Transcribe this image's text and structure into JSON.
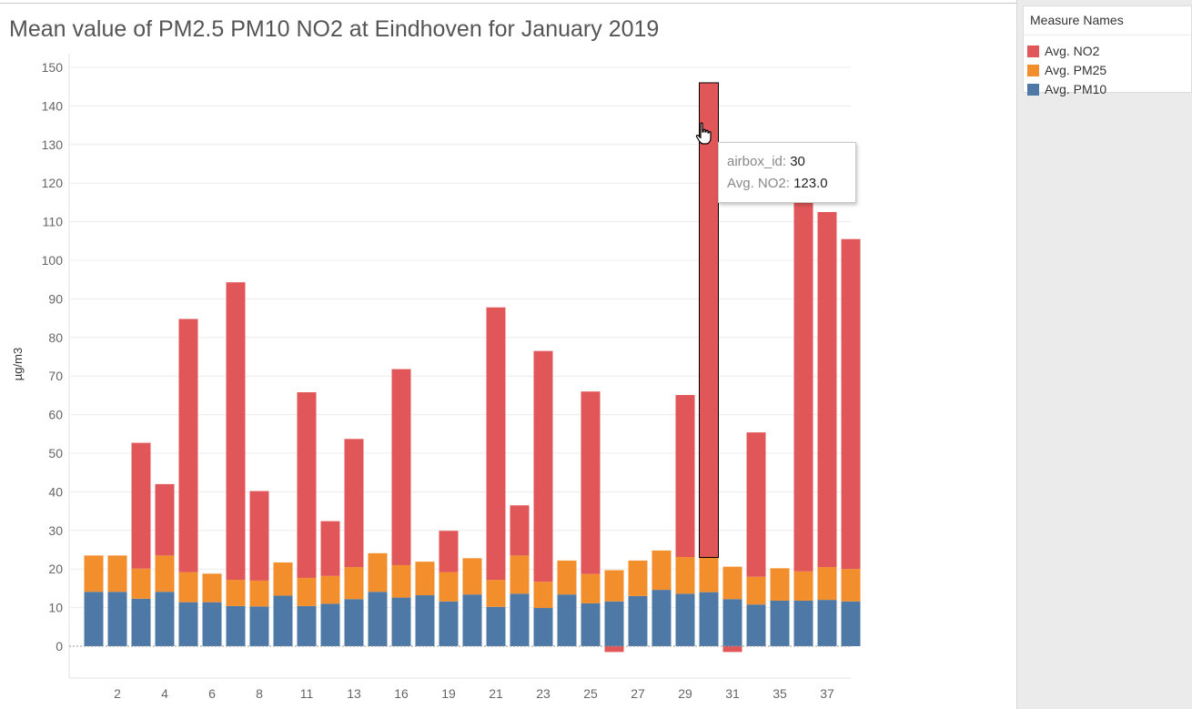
{
  "title": "Mean value of PM2.5 PM10 NO2 at Eindhoven for January 2019",
  "legend": {
    "title": "Measure Names",
    "items": [
      {
        "label": "Avg. NO2",
        "color": "#e15759"
      },
      {
        "label": "Avg. PM25",
        "color": "#f28e2b"
      },
      {
        "label": "Avg. PM10",
        "color": "#4e79a7"
      }
    ]
  },
  "tooltip": {
    "key1": "airbox_id:",
    "val1": "30",
    "key2": "Avg. NO2:",
    "val2": "123.0"
  },
  "chart_data": {
    "type": "bar",
    "stacked": true,
    "title": "",
    "xlabel": "",
    "ylabel": "µg/m3",
    "ylim": [
      0,
      150
    ],
    "yticks": [
      0,
      10,
      20,
      30,
      40,
      50,
      60,
      70,
      80,
      90,
      100,
      110,
      120,
      130,
      140,
      150
    ],
    "x_tick_labels": [
      "2",
      "4",
      "6",
      "8",
      "11",
      "13",
      "16",
      "19",
      "21",
      "23",
      "25",
      "27",
      "29",
      "31",
      "35",
      "37"
    ],
    "x_tick_positions": [
      2,
      4,
      6,
      8,
      10,
      12,
      14,
      16,
      18,
      20,
      22,
      24,
      26,
      28,
      30,
      32
    ],
    "grid": true,
    "legend_position": "top-right",
    "highlighted_index": 26,
    "series": [
      {
        "name": "Avg. PM10",
        "color": "#4e79a7",
        "values": [
          14.1,
          14.1,
          12.3,
          14.1,
          11.4,
          11.4,
          10.4,
          10.3,
          13.1,
          10.4,
          11.0,
          12.2,
          14.1,
          12.6,
          13.2,
          11.6,
          13.4,
          10.2,
          13.6,
          9.9,
          13.4,
          11.1,
          11.6,
          13.0,
          14.6,
          13.6,
          14.0,
          12.2,
          10.8,
          11.8,
          11.8,
          12.0,
          11.6
        ]
      },
      {
        "name": "Avg. PM25",
        "color": "#f28e2b",
        "values": [
          9.4,
          9.4,
          7.8,
          9.4,
          7.8,
          7.4,
          6.8,
          6.7,
          8.6,
          7.3,
          7.2,
          8.3,
          10.0,
          8.4,
          8.7,
          7.6,
          9.4,
          7.0,
          9.9,
          6.8,
          8.8,
          7.6,
          8.1,
          9.2,
          10.2,
          9.5,
          9.0,
          8.4,
          7.2,
          8.4,
          7.6,
          8.5,
          8.4
        ]
      },
      {
        "name": "Avg. NO2",
        "color": "#e15759",
        "values": [
          0,
          0,
          32.6,
          18.5,
          65.6,
          0,
          77.1,
          23.2,
          0,
          48.1,
          14.2,
          33.2,
          0,
          50.8,
          0,
          10.7,
          0,
          70.6,
          13.0,
          59.8,
          0,
          47.3,
          -1.5,
          0,
          0,
          42.0,
          123.0,
          -1.5,
          37.4,
          0,
          96.5,
          92.0,
          85.5
        ]
      }
    ]
  }
}
